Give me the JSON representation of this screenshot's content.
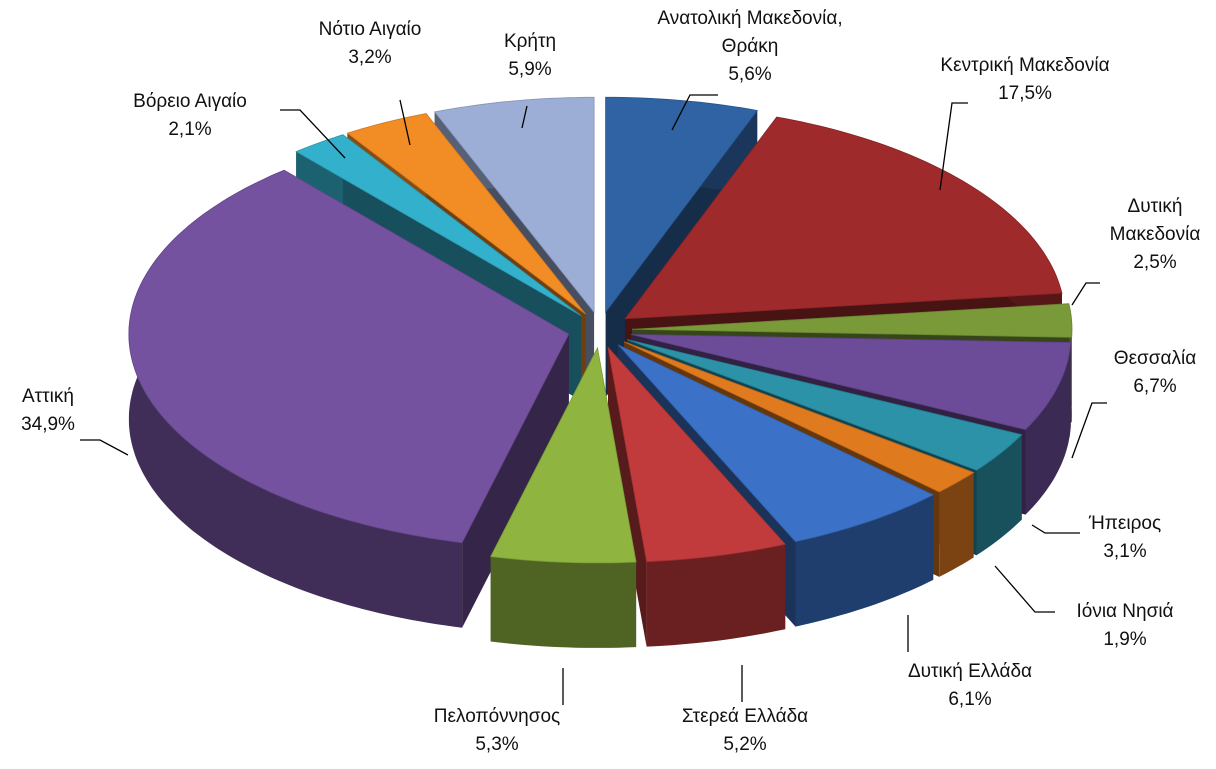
{
  "chart_data": {
    "type": "pie",
    "categories": [
      "Ανατολική Μακεδονία, Θράκη",
      "Κεντρική Μακεδονία",
      "Δυτική Μακεδονία",
      "Θεσσαλία",
      "Ήπειρος",
      "Ιόνια Νησιά",
      "Δυτική Ελλάδα",
      "Στερεά Ελλάδα",
      "Πελοπόννησος",
      "Αττική",
      "Βόρειο Αιγαίο",
      "Νότιο Αιγαίο",
      "Κρήτη"
    ],
    "values": [
      5.6,
      17.5,
      2.5,
      6.7,
      3.1,
      1.9,
      6.1,
      5.2,
      5.3,
      34.9,
      2.1,
      3.2,
      5.9
    ],
    "value_labels": [
      "5,6%",
      "17,5%",
      "2,5%",
      "6,7%",
      "3,1%",
      "1,9%",
      "6,1%",
      "5,2%",
      "5,3%",
      "34,9%",
      "2,1%",
      "3,2%",
      "5,9%"
    ],
    "colors": [
      "#2f63a3",
      "#9e2a2b",
      "#7a9a3a",
      "#6c4c98",
      "#2b92a8",
      "#e07a1e",
      "#3b71c6",
      "#c13b3c",
      "#8fb540",
      "#7552a0",
      "#33b0cc",
      "#f28c25",
      "#9caed6"
    ]
  }
}
